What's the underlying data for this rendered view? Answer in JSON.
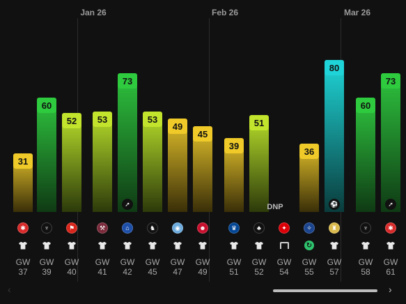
{
  "months": [
    "Jan 26",
    "Feb 26",
    "Mar 26"
  ],
  "dnp_label": "DNP",
  "gw_prefix": "GW",
  "colors": {
    "background": "#111111",
    "points_high": "#2ec43e",
    "points_mid": "#b7df2a",
    "points_low": "#e1c22a",
    "points_top": "#1fd4d4"
  },
  "gameweeks": [
    {
      "gw": "37",
      "points": "31",
      "opponent": "brentford-crest",
      "status": "started-shirt"
    },
    {
      "gw": "39",
      "points": "60",
      "opponent": "liverpool-crest",
      "status": "started-shirt"
    },
    {
      "gw": "40",
      "points": "52",
      "opponent": "man-utd-crest",
      "status": "started-shirt"
    },
    {
      "gw": "41",
      "points": "53",
      "opponent": "west-ham-crest",
      "status": "started-shirt"
    },
    {
      "gw": "42",
      "points": "73",
      "opponent": "everton-crest",
      "status": "started-shirt",
      "icon": "assist-icon"
    },
    {
      "gw": "45",
      "points": "53",
      "opponent": "newcastle-crest",
      "status": "started-shirt"
    },
    {
      "gw": "47",
      "points": "49",
      "opponent": "man-city-crest",
      "status": "started-shirt"
    },
    {
      "gw": "49",
      "points": "45",
      "opponent": "bournemouth-crest",
      "status": "started-shirt"
    },
    {
      "gw": "51",
      "points": "39",
      "opponent": "chelsea-crest",
      "status": "started-shirt"
    },
    {
      "gw": "52",
      "points": "51",
      "opponent": "nottm-forest-crest",
      "status": "started-shirt"
    },
    {
      "gw": "54",
      "points": "",
      "opponent": "arsenal-crest",
      "status": "bench"
    },
    {
      "gw": "55",
      "points": "36",
      "opponent": "crystal-palace-crest",
      "status": "subbed-on"
    },
    {
      "gw": "57",
      "points": "80",
      "opponent": "aston-villa-crest",
      "status": "started-shirt",
      "icon": "ball-icon"
    },
    {
      "gw": "58",
      "points": "60",
      "opponent": "liverpool-crest",
      "status": "started-shirt"
    },
    {
      "gw": "61",
      "points": "73",
      "opponent": "brentford-crest",
      "status": "started-shirt",
      "icon": "assist-icon"
    }
  ]
}
